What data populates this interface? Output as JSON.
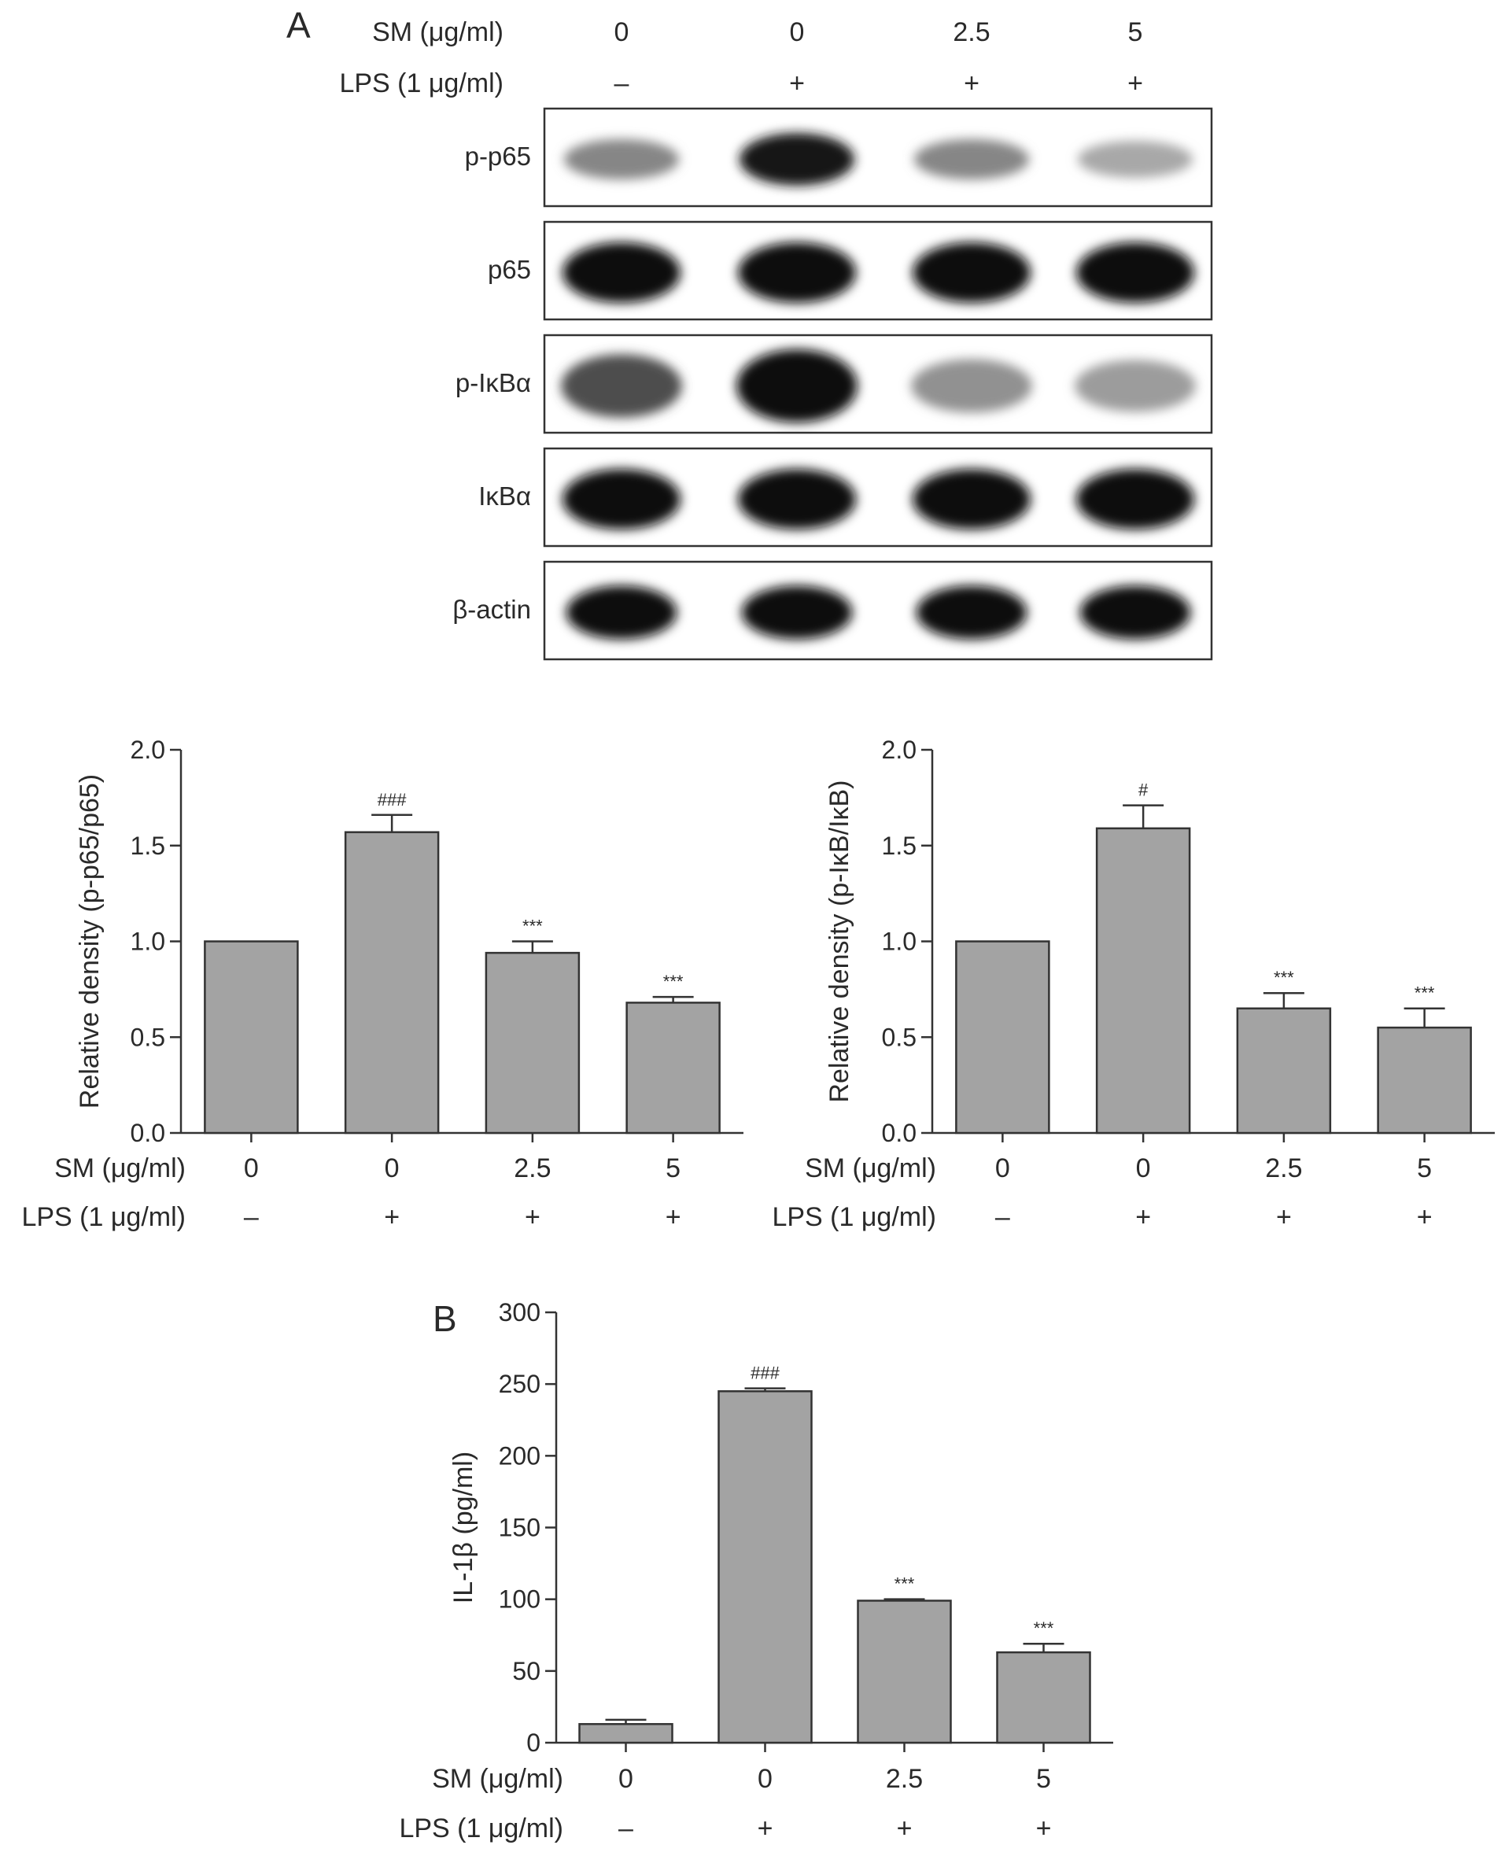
{
  "panel_labels": {
    "a": "A",
    "b": "B"
  },
  "blot": {
    "header_rows": [
      {
        "label": "SM (μg/ml)",
        "values": [
          "0",
          "0",
          "2.5",
          "5"
        ]
      },
      {
        "label": "LPS (1 μg/ml)",
        "values": [
          "–",
          "+",
          "+",
          "+"
        ]
      }
    ],
    "strips": [
      {
        "label": "p-p65",
        "intensities": [
          0.45,
          0.95,
          0.45,
          0.3
        ],
        "band_width": 0.78,
        "band_height": 0.55
      },
      {
        "label": "p65",
        "intensities": [
          1.0,
          1.0,
          1.0,
          1.0
        ],
        "band_width": 0.8,
        "band_height": 0.62
      },
      {
        "label": "p-IκBα",
        "intensities": [
          0.7,
          1.0,
          0.4,
          0.35
        ],
        "band_width": 0.82,
        "band_height": 0.75
      },
      {
        "label": "IκBα",
        "intensities": [
          1.0,
          1.0,
          1.0,
          1.0
        ],
        "band_width": 0.8,
        "band_height": 0.62
      },
      {
        "label": "β-actin",
        "intensities": [
          1.0,
          1.0,
          1.0,
          1.0
        ],
        "band_width": 0.75,
        "band_height": 0.55
      }
    ]
  },
  "chart_data": [
    {
      "type": "bar",
      "ylabel": "Relative density (p-p65/p65)",
      "ylim": [
        0,
        2.0
      ],
      "yticks": [
        "0.0",
        "0.5",
        "1.0",
        "1.5",
        "2.0"
      ],
      "values": [
        1.0,
        1.57,
        0.94,
        0.68
      ],
      "errors": [
        0,
        0.09,
        0.06,
        0.03
      ],
      "annotations": [
        "",
        "###",
        "***",
        "***"
      ],
      "row_labels": [
        "SM (μg/ml)",
        "LPS (1 μg/ml)"
      ],
      "sm": [
        "0",
        "0",
        "2.5",
        "5"
      ],
      "lps": [
        "–",
        "+",
        "+",
        "+"
      ],
      "bar_color": "#a3a3a3"
    },
    {
      "type": "bar",
      "ylabel": "Relative density (p-IκB/IκB)",
      "ylim": [
        0,
        2.0
      ],
      "yticks": [
        "0.0",
        "0.5",
        "1.0",
        "1.5",
        "2.0"
      ],
      "values": [
        1.0,
        1.59,
        0.65,
        0.55
      ],
      "errors": [
        0,
        0.12,
        0.08,
        0.1
      ],
      "annotations": [
        "",
        "#",
        "***",
        "***"
      ],
      "row_labels": [
        "SM (μg/ml)",
        "LPS (1 μg/ml)"
      ],
      "sm": [
        "0",
        "0",
        "2.5",
        "5"
      ],
      "lps": [
        "–",
        "+",
        "+",
        "+"
      ],
      "bar_color": "#a3a3a3"
    },
    {
      "type": "bar",
      "ylabel": "IL-1β (pg/ml)",
      "ylim": [
        0,
        300
      ],
      "yticks": [
        "0",
        "50",
        "100",
        "150",
        "200",
        "250",
        "300"
      ],
      "values": [
        13,
        245,
        99,
        63
      ],
      "errors": [
        3,
        2,
        1,
        6
      ],
      "annotations": [
        "",
        "###",
        "***",
        "***"
      ],
      "row_labels": [
        "SM (μg/ml)",
        "LPS (1 μg/ml)"
      ],
      "sm": [
        "0",
        "0",
        "2.5",
        "5"
      ],
      "lps": [
        "–",
        "+",
        "+",
        "+"
      ],
      "bar_color": "#a3a3a3"
    }
  ]
}
